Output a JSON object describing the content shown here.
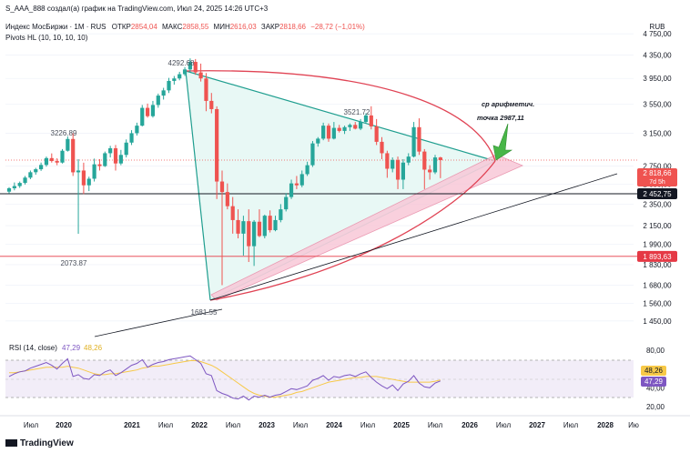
{
  "header": {
    "author_line": "S_AAA_888 создал(а) график на TradingView.com, Июл 24, 2025 14:26 UTC+3",
    "symbol": "Индекс МосБиржи · 1M · RUS",
    "ohlc": [
      {
        "label": "ОТКР",
        "value": "2854,04"
      },
      {
        "label": "МАКС",
        "value": "2858,55"
      },
      {
        "label": "МИН",
        "value": "2616,03"
      },
      {
        "label": "ЗАКР",
        "value": "2818,66"
      }
    ],
    "change": "−28,72 (−1,01%)",
    "indicator": "Pivots HL (10, 10, 10, 10)",
    "currency": "RUB"
  },
  "colors": {
    "up": "#26a69a",
    "down": "#ef5350",
    "triangle_fill": "#e8f8f5",
    "triangle_line": "#1f9e8f",
    "arc": "#e04354",
    "channel_fill": "#f8c8d8",
    "rsi": "#7e57c2",
    "rsi_ma": "#f7c948"
  },
  "chart_data": [
    {
      "type": "candlestick",
      "title": "Индекс МосБиржи · 1M · RUS",
      "ylim": [
        1380,
        4700
      ],
      "ticks": [
        "4 750,00",
        "4 350,00",
        "3 950,00",
        "3 550,00",
        "3 150,00",
        "2 750,00",
        "2 550,00",
        "2 350,00",
        "2 150,00",
        "1 990,00",
        "1 830,00",
        "1 680,00",
        "1 560,00",
        "1 450,00"
      ],
      "x_labels": [
        "Июл",
        "2020",
        "2021",
        "Июл",
        "2022",
        "Июл",
        "2023",
        "Июл",
        "2024",
        "Июл",
        "2025",
        "Июл",
        "2026",
        "Июл",
        "2027",
        "Июл",
        "2028",
        "Ию"
      ],
      "pivots": [
        {
          "label": "4292.68"
        },
        {
          "label": "3226.89"
        },
        {
          "label": "3521.72"
        },
        {
          "label": "2073.87"
        },
        {
          "label": "1681.55"
        }
      ],
      "annotation": {
        "line1": "ср арифметич.",
        "line2": "точка 2987,11"
      },
      "levels": [
        {
          "value": 2452.75,
          "label": "2 452,75",
          "color": "#131722"
        },
        {
          "value": 1893.63,
          "label": "1 893,63",
          "color": "#e53945"
        }
      ],
      "last": {
        "value": 2818.66,
        "label": "2 818,66",
        "countdown": "7d 5h"
      },
      "candles": [
        [
          2474,
          2520,
          2456,
          2509
        ],
        [
          2509,
          2570,
          2488,
          2532
        ],
        [
          2532,
          2580,
          2513,
          2565
        ],
        [
          2565,
          2640,
          2548,
          2622
        ],
        [
          2622,
          2700,
          2605,
          2681
        ],
        [
          2681,
          2730,
          2654,
          2714
        ],
        [
          2714,
          2790,
          2696,
          2763
        ],
        [
          2763,
          2860,
          2743,
          2842
        ],
        [
          2842,
          2898,
          2790,
          2808
        ],
        [
          2808,
          2840,
          2760,
          2790
        ],
        [
          2790,
          2950,
          2780,
          2930
        ],
        [
          2930,
          3110,
          2920,
          3076
        ],
        [
          3076,
          3150,
          2640,
          2680
        ],
        [
          2680,
          2830,
          2079,
          2700
        ],
        [
          2700,
          2789,
          2450,
          2540
        ],
        [
          2540,
          2632,
          2480,
          2610
        ],
        [
          2610,
          2836,
          2580,
          2770
        ],
        [
          2770,
          2830,
          2700,
          2750
        ],
        [
          2750,
          2920,
          2740,
          2900
        ],
        [
          2900,
          2990,
          2850,
          2960
        ],
        [
          2960,
          3000,
          2700,
          2780
        ],
        [
          2780,
          2940,
          2760,
          2880
        ],
        [
          2880,
          3070,
          2850,
          3030
        ],
        [
          3030,
          3190,
          3000,
          3150
        ],
        [
          3150,
          3290,
          3120,
          3250
        ],
        [
          3250,
          3540,
          3240,
          3498
        ],
        [
          3498,
          3560,
          3360,
          3380
        ],
        [
          3380,
          3600,
          3360,
          3540
        ],
        [
          3540,
          3710,
          3500,
          3680
        ],
        [
          3680,
          3800,
          3620,
          3760
        ],
        [
          3760,
          3960,
          3720,
          3910
        ],
        [
          3910,
          3990,
          3850,
          3950
        ],
        [
          3950,
          4060,
          3920,
          4020
        ],
        [
          4020,
          4140,
          3990,
          4100
        ],
        [
          4100,
          4292,
          4060,
          4230
        ],
        [
          4230,
          4280,
          4010,
          4050
        ],
        [
          4050,
          4200,
          3900,
          3950
        ],
        [
          3950,
          4040,
          3450,
          3600
        ],
        [
          3600,
          3720,
          3420,
          3480
        ],
        [
          3480,
          3520,
          2400,
          2580
        ],
        [
          2580,
          2700,
          1681,
          2470
        ],
        [
          2470,
          2560,
          2300,
          2330
        ],
        [
          2330,
          2420,
          2080,
          2200
        ],
        [
          2200,
          2300,
          2040,
          2080
        ],
        [
          2080,
          2240,
          1900,
          2190
        ],
        [
          2190,
          2300,
          1850,
          1975
        ],
        [
          1975,
          2200,
          1820,
          2185
        ],
        [
          2185,
          2300,
          2050,
          2060
        ],
        [
          2060,
          2250,
          2040,
          2240
        ],
        [
          2240,
          2290,
          2090,
          2110
        ],
        [
          2110,
          2240,
          2100,
          2200
        ],
        [
          2200,
          2350,
          2180,
          2300
        ],
        [
          2300,
          2460,
          2280,
          2420
        ],
        [
          2420,
          2600,
          2400,
          2560
        ],
        [
          2560,
          2640,
          2500,
          2540
        ],
        [
          2540,
          2700,
          2520,
          2660
        ],
        [
          2660,
          2800,
          2640,
          2760
        ],
        [
          2760,
          3050,
          2740,
          3020
        ],
        [
          3020,
          3100,
          2980,
          3080
        ],
        [
          3080,
          3290,
          3060,
          3250
        ],
        [
          3250,
          3280,
          3040,
          3080
        ],
        [
          3080,
          3300,
          3070,
          3220
        ],
        [
          3220,
          3260,
          3160,
          3180
        ],
        [
          3180,
          3250,
          3140,
          3230
        ],
        [
          3230,
          3280,
          3180,
          3260
        ],
        [
          3260,
          3300,
          3200,
          3210
        ],
        [
          3210,
          3340,
          3190,
          3300
        ],
        [
          3300,
          3420,
          3280,
          3390
        ],
        [
          3390,
          3521,
          3200,
          3240
        ],
        [
          3240,
          3340,
          3000,
          3040
        ],
        [
          3040,
          3100,
          2830,
          2900
        ],
        [
          2900,
          2930,
          2620,
          2720
        ],
        [
          2720,
          2850,
          2680,
          2820
        ],
        [
          2820,
          2860,
          2500,
          2600
        ],
        [
          2600,
          2830,
          2500,
          2790
        ],
        [
          2790,
          2900,
          2760,
          2860
        ],
        [
          2860,
          3300,
          2850,
          3230
        ],
        [
          3230,
          3350,
          2880,
          2920
        ],
        [
          2920,
          2950,
          2500,
          2710
        ],
        [
          2710,
          2760,
          2600,
          2680
        ],
        [
          2680,
          2880,
          2660,
          2850
        ],
        [
          2850,
          2858,
          2616,
          2819
        ]
      ]
    },
    {
      "type": "line",
      "title": "RSI (14, close)",
      "series": [
        {
          "name": "RSI",
          "label": "47,29"
        },
        {
          "name": "RSI MA",
          "label": "48,26"
        }
      ],
      "ylim": [
        15,
        85
      ],
      "ticks": [
        "80,00",
        "40,00",
        "20,00"
      ],
      "rsi": [
        52,
        55,
        57,
        58,
        61,
        63,
        65,
        67,
        64,
        60,
        66,
        71,
        52,
        54,
        50,
        49,
        54,
        53,
        57,
        59,
        53,
        56,
        60,
        64,
        66,
        70,
        62,
        65,
        67,
        68,
        70,
        71,
        72,
        73,
        74,
        70,
        66,
        55,
        53,
        37,
        34,
        32,
        29,
        28,
        31,
        27,
        31,
        30,
        32,
        30,
        32,
        33,
        36,
        39,
        38,
        40,
        42,
        48,
        50,
        53,
        48,
        52,
        51,
        53,
        54,
        52,
        55,
        57,
        51,
        46,
        42,
        39,
        43,
        37,
        44,
        47,
        53,
        45,
        41,
        40,
        45,
        47.29
      ],
      "rsi_ma": [
        56,
        56,
        57,
        58,
        59,
        60,
        61,
        62,
        62,
        62,
        62,
        63,
        62,
        61,
        59,
        57,
        55,
        54,
        54,
        55,
        55,
        56,
        57,
        58,
        59,
        61,
        62,
        63,
        63,
        64,
        65,
        66,
        67,
        68,
        69,
        69,
        68,
        66,
        64,
        61,
        57,
        53,
        49,
        45,
        41,
        37,
        34,
        32,
        31,
        30,
        30,
        31,
        32,
        33,
        35,
        36,
        38,
        40,
        42,
        44,
        46,
        47,
        48,
        49,
        50,
        51,
        51,
        52,
        52,
        52,
        51,
        50,
        49,
        48,
        47,
        46,
        46,
        46,
        46,
        46,
        47,
        48.26
      ]
    }
  ],
  "footer": {
    "brand": "TradingView"
  }
}
